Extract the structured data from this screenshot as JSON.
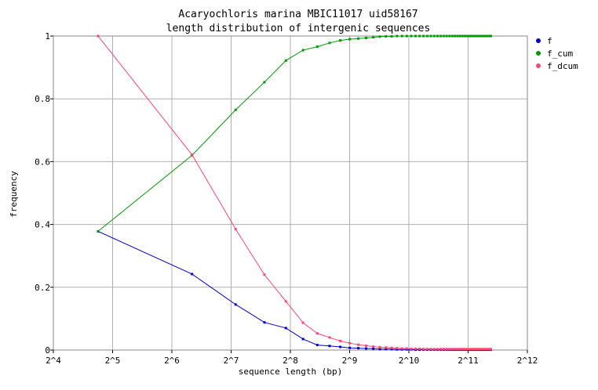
{
  "chart_data": {
    "type": "line",
    "title": "Acaryochloris marina MBIC11017 uid58167",
    "subtitle": "length distribution of intergenic sequences",
    "xlabel": "sequence length (bp)",
    "ylabel": "frequency",
    "x_scale": "log2",
    "xlim": [
      16,
      4096
    ],
    "ylim": [
      0,
      1
    ],
    "x_tick_values": [
      16,
      32,
      64,
      128,
      256,
      512,
      1024,
      2048,
      4096
    ],
    "x_tick_labels": [
      "2^4",
      "2^5",
      "2^6",
      "2^7",
      "2^8",
      "2^9",
      "2^10",
      "2^11",
      "2^12"
    ],
    "y_tick_values": [
      0,
      0.2,
      0.4,
      0.6,
      0.8,
      1
    ],
    "y_tick_labels": [
      "0",
      "0.2",
      "0.4",
      "0.6",
      "0.8",
      "1"
    ],
    "grid": true,
    "legend_position": "right",
    "x": [
      27,
      81,
      135,
      189,
      243,
      297,
      351,
      405,
      459,
      513,
      567,
      621,
      675,
      729,
      783,
      837,
      891,
      945,
      999,
      1053,
      1107,
      1161,
      1215,
      1269,
      1323,
      1377,
      1431,
      1485,
      1539,
      1593,
      1647,
      1701,
      1755,
      1809,
      1863,
      1917,
      1971,
      2025,
      2079,
      2133,
      2187,
      2241,
      2295,
      2349,
      2403,
      2457,
      2511,
      2565,
      2619,
      2673
    ],
    "series": [
      {
        "name": "f",
        "color": "#0000cc",
        "values": [
          0.378,
          0.242,
          0.145,
          0.088,
          0.07,
          0.035,
          0.016,
          0.013,
          0.01,
          0.007,
          0.006,
          0.005,
          0.004,
          0.003,
          0.003,
          0.003,
          0.002,
          0.002,
          0.002,
          0.002,
          0.001,
          0.001,
          0.001,
          0.001,
          0.001,
          0.001,
          0.001,
          0.001,
          0.001,
          0.001,
          0.001,
          0.001,
          0.001,
          0.001,
          0.001,
          0.001,
          0.001,
          0.001,
          0.001,
          0.001,
          0.001,
          0.001,
          0.001,
          0.001,
          0.001,
          0.001,
          0.001,
          0.001,
          0.001,
          0.001
        ]
      },
      {
        "name": "f_cum",
        "color": "#009900",
        "values": [
          0.378,
          0.62,
          0.765,
          0.853,
          0.922,
          0.955,
          0.966,
          0.978,
          0.986,
          0.99,
          0.992,
          0.994,
          0.996,
          0.998,
          0.999,
          0.999,
          1.0,
          1.0,
          1.0,
          1.0,
          1.0,
          1.0,
          1.0,
          1.0,
          1.0,
          1.0,
          1.0,
          1.0,
          1.0,
          1.0,
          1.0,
          1.0,
          1.0,
          1.0,
          1.0,
          1.0,
          1.0,
          1.0,
          1.0,
          1.0,
          1.0,
          1.0,
          1.0,
          1.0,
          1.0,
          1.0,
          1.0,
          1.0,
          1.0,
          1.0
        ]
      },
      {
        "name": "f_dcum",
        "color": "#ff4477",
        "values": [
          1.0,
          0.622,
          0.385,
          0.24,
          0.155,
          0.087,
          0.053,
          0.04,
          0.029,
          0.022,
          0.017,
          0.014,
          0.011,
          0.009,
          0.008,
          0.007,
          0.006,
          0.005,
          0.005,
          0.004,
          0.004,
          0.004,
          0.003,
          0.003,
          0.003,
          0.003,
          0.003,
          0.003,
          0.003,
          0.003,
          0.003,
          0.003,
          0.003,
          0.003,
          0.003,
          0.003,
          0.003,
          0.003,
          0.003,
          0.003,
          0.003,
          0.003,
          0.003,
          0.003,
          0.003,
          0.003,
          0.003,
          0.003,
          0.003,
          0.003
        ]
      }
    ]
  }
}
